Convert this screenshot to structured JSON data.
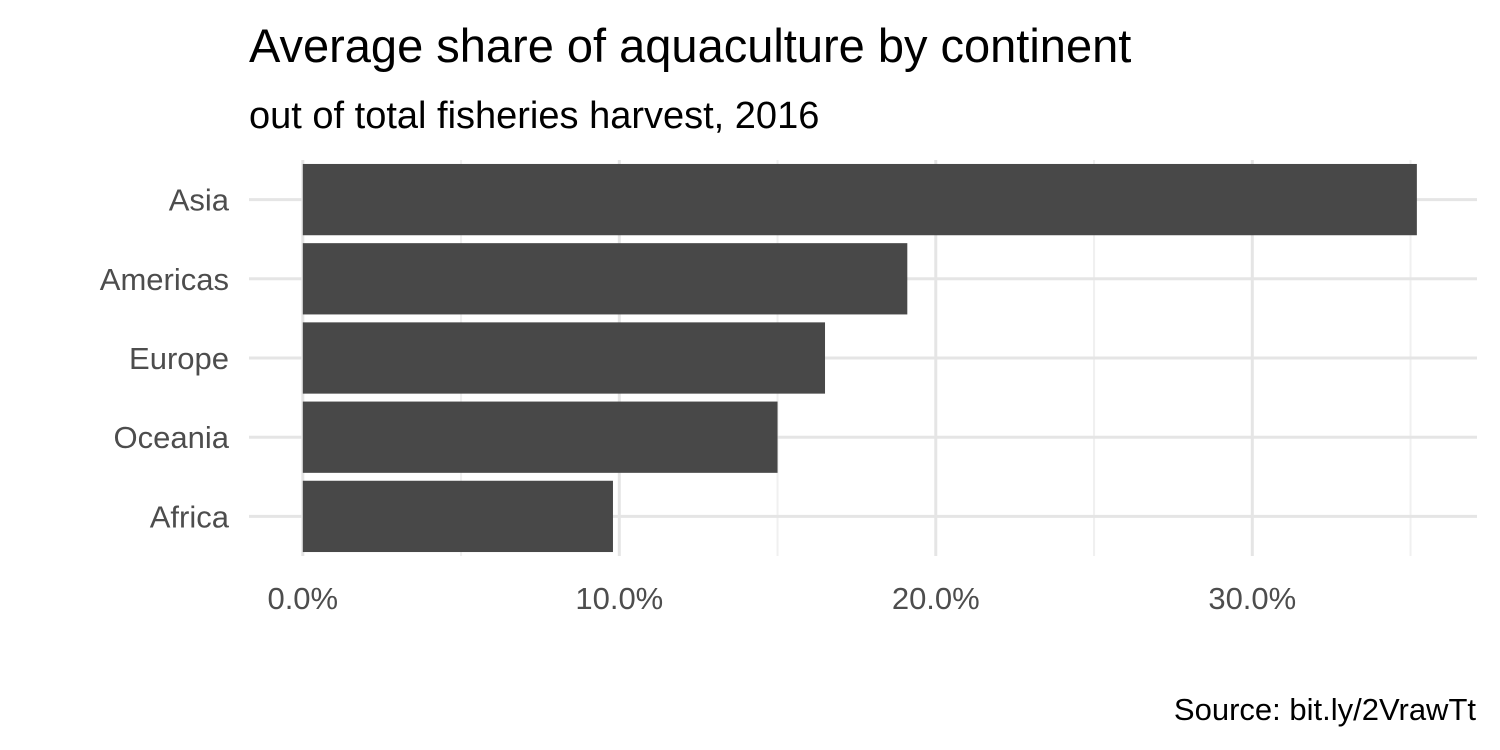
{
  "chart_data": {
    "type": "bar",
    "orientation": "horizontal",
    "title": "Average share of aquaculture by continent",
    "subtitle": "out of total fisheries harvest, 2016",
    "caption": "Source: bit.ly/2VrawTt",
    "categories": [
      "Asia",
      "Americas",
      "Europe",
      "Oceania",
      "Africa"
    ],
    "values": [
      35.2,
      19.1,
      16.5,
      15.0,
      9.8
    ],
    "x_ticks": [
      0,
      10,
      20,
      30
    ],
    "x_tick_labels": [
      "0.0%",
      "10.0%",
      "20.0%",
      "30.0%"
    ],
    "xlim": [
      -1.7,
      37.1
    ],
    "xlabel": "",
    "ylabel": "",
    "grid": true,
    "colors": {
      "bar": "#484848",
      "grid_major": "#e5e5e5",
      "grid_minor": "#f0f0f0",
      "tick_label": "#4d4d4d",
      "text": "#000000"
    }
  }
}
